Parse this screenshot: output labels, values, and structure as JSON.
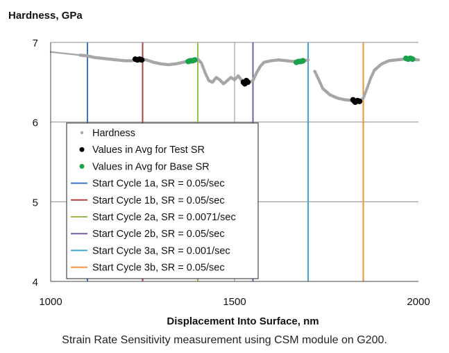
{
  "chart_data": {
    "type": "scatter",
    "title": "Hardness, GPa",
    "xlabel": "Displacement Into Surface, nm",
    "ylabel": "Hardness, GPa",
    "xlim": [
      1000,
      2000
    ],
    "ylim": [
      4,
      7
    ],
    "xticks": [
      "1000",
      "1500",
      "2000"
    ],
    "yticks": [
      "4",
      "5",
      "6",
      "7"
    ],
    "grid": "horizontal",
    "legend_position": "lower-left",
    "series": [
      {
        "name": "Hardness",
        "kind": "points",
        "color": "#a6a6a6",
        "x": [
          1000,
          1020,
          1040,
          1060,
          1080,
          1100,
          1120,
          1140,
          1160,
          1180,
          1200,
          1220,
          1240,
          1260,
          1280,
          1300,
          1320,
          1340,
          1360,
          1380,
          1400,
          1410,
          1420,
          1430,
          1440,
          1450,
          1460,
          1470,
          1480,
          1490,
          1500,
          1510,
          1520,
          1530,
          1540,
          1550,
          1560,
          1570,
          1580,
          1600,
          1620,
          1640,
          1660,
          1680,
          1700,
          1720,
          1740,
          1760,
          1780,
          1800,
          1820,
          1840,
          1850,
          1860,
          1870,
          1880,
          1900,
          1920,
          1940,
          1960,
          1980,
          2000
        ],
        "y": [
          6.88,
          6.87,
          6.86,
          6.85,
          6.84,
          6.83,
          6.81,
          6.8,
          6.79,
          6.78,
          6.77,
          6.77,
          6.79,
          6.78,
          6.75,
          6.73,
          6.72,
          6.73,
          6.75,
          6.77,
          6.79,
          6.74,
          6.62,
          6.52,
          6.5,
          6.56,
          6.53,
          6.48,
          6.52,
          6.56,
          6.53,
          6.58,
          6.52,
          6.48,
          6.5,
          6.52,
          6.62,
          6.7,
          6.75,
          6.77,
          6.78,
          6.77,
          6.76,
          6.76,
          6.78,
          6.62,
          6.42,
          6.34,
          6.3,
          6.28,
          6.27,
          6.26,
          6.3,
          6.42,
          6.55,
          6.65,
          6.73,
          6.77,
          6.78,
          6.79,
          6.79,
          6.78
        ]
      },
      {
        "name": "Values in Avg for Test SR",
        "kind": "points",
        "color": "#000000",
        "x": [
          1230,
          1236,
          1242,
          1248,
          1524,
          1528,
          1532,
          1536,
          1822,
          1828,
          1834,
          1840
        ],
        "y": [
          6.79,
          6.78,
          6.79,
          6.78,
          6.5,
          6.48,
          6.52,
          6.5,
          6.28,
          6.25,
          6.27,
          6.26
        ]
      },
      {
        "name": "Values in Avg for Base SR",
        "kind": "points",
        "color": "#19a24a",
        "x": [
          1374,
          1380,
          1386,
          1392,
          1668,
          1674,
          1680,
          1686,
          1966,
          1972,
          1978,
          1984
        ],
        "y": [
          6.76,
          6.77,
          6.77,
          6.78,
          6.75,
          6.76,
          6.76,
          6.77,
          6.8,
          6.79,
          6.8,
          6.79
        ]
      },
      {
        "name": "Start Cycle 1a, SR = 0.05/sec",
        "kind": "vline",
        "x": 1100,
        "color": "#3a75c4"
      },
      {
        "name": "Start Cycle 1b, SR = 0.05/sec",
        "kind": "vline",
        "x": 1250,
        "color": "#b0413e"
      },
      {
        "name": "Start Cycle 2a, SR = 0.0071/sec",
        "kind": "vline",
        "x": 1400,
        "color": "#95be48"
      },
      {
        "name": "Start Cycle 2b, SR = 0.05/sec",
        "kind": "vline",
        "x": 1550,
        "color": "#7a5ba6"
      },
      {
        "name": "Start Cycle 3a, SR = 0.001/sec",
        "kind": "vline",
        "x": 1700,
        "color": "#3ea6cf"
      },
      {
        "name": "Start Cycle 3b, SR = 0.05/sec",
        "kind": "vline",
        "x": 1850,
        "color": "#f0923a"
      }
    ]
  },
  "caption": "Strain Rate Sensitivity measurement using CSM module on G200."
}
